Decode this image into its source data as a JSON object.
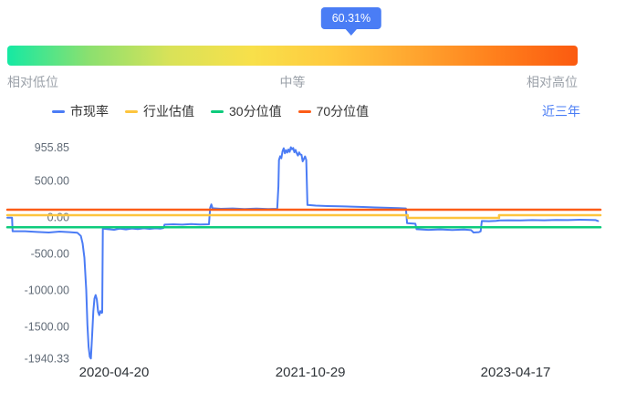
{
  "indicator": {
    "tooltip_value": "60.31%",
    "value_percent": 60.31,
    "low_label": "相对低位",
    "mid_label": "中等",
    "high_label": "相对高位",
    "gradient": [
      "#15E9A3",
      "#8BE06F",
      "#D9E258",
      "#F8E04A",
      "#FFC93E",
      "#FFA52F",
      "#FF7F1C",
      "#FB5A10"
    ]
  },
  "legend": {
    "items": [
      {
        "label": "市现率",
        "color": "#4B7CF5"
      },
      {
        "label": "行业估值",
        "color": "#FDC53E"
      },
      {
        "label": "30分位值",
        "color": "#0ECB7C"
      },
      {
        "label": "70分位值",
        "color": "#FC5C17"
      }
    ]
  },
  "range_link_label": "近三年",
  "chart_data": {
    "type": "line",
    "title": "",
    "xlabel": "",
    "ylabel": "",
    "x_unit": "fraction of 3-year window (dates)",
    "grid": false,
    "legend_position": "top-left",
    "ylim": [
      -1950,
      975
    ],
    "y_ticks": [
      {
        "value": 955.85,
        "label": "955.85"
      },
      {
        "value": 500,
        "label": "500.00"
      },
      {
        "value": 0,
        "label": "0.00"
      },
      {
        "value": -500,
        "label": "-500.00"
      },
      {
        "value": -1000,
        "label": "-1000.00"
      },
      {
        "value": -1500,
        "label": "-1500.00"
      },
      {
        "value": -1940.33,
        "label": "-1940.33"
      }
    ],
    "x_ticks": [
      {
        "pos": 0.18,
        "label": "2020-04-20"
      },
      {
        "pos": 0.511,
        "label": "2021-10-29"
      },
      {
        "pos": 0.857,
        "label": "2023-04-17"
      }
    ],
    "series": [
      {
        "name": "市现率",
        "color": "#4B7CF5",
        "width": 2,
        "points": [
          [
            0.0,
            -10
          ],
          [
            0.008,
            -10
          ],
          [
            0.009,
            -195
          ],
          [
            0.03,
            -195
          ],
          [
            0.05,
            -205
          ],
          [
            0.07,
            -212
          ],
          [
            0.088,
            -200
          ],
          [
            0.105,
            -207
          ],
          [
            0.118,
            -215
          ],
          [
            0.124,
            -260
          ],
          [
            0.127,
            -360
          ],
          [
            0.13,
            -560
          ],
          [
            0.133,
            -1000
          ],
          [
            0.135,
            -1480
          ],
          [
            0.137,
            -1780
          ],
          [
            0.139,
            -1915
          ],
          [
            0.141,
            -1940.33
          ],
          [
            0.143,
            -1640
          ],
          [
            0.145,
            -1290
          ],
          [
            0.147,
            -1120
          ],
          [
            0.149,
            -1070
          ],
          [
            0.151,
            -1130
          ],
          [
            0.153,
            -1300
          ],
          [
            0.155,
            -1345
          ],
          [
            0.157,
            -1290
          ],
          [
            0.159,
            -1315
          ],
          [
            0.16,
            -1310
          ],
          [
            0.161,
            -160
          ],
          [
            0.17,
            -168
          ],
          [
            0.18,
            -175
          ],
          [
            0.19,
            -160
          ],
          [
            0.2,
            -170
          ],
          [
            0.21,
            -158
          ],
          [
            0.22,
            -166
          ],
          [
            0.23,
            -155
          ],
          [
            0.24,
            -163
          ],
          [
            0.25,
            -155
          ],
          [
            0.258,
            -160
          ],
          [
            0.263,
            -152
          ],
          [
            0.265,
            -105
          ],
          [
            0.28,
            -100
          ],
          [
            0.295,
            -105
          ],
          [
            0.31,
            -97
          ],
          [
            0.325,
            -102
          ],
          [
            0.34,
            -100
          ],
          [
            0.342,
            125
          ],
          [
            0.344,
            172
          ],
          [
            0.346,
            120
          ],
          [
            0.36,
            113
          ],
          [
            0.38,
            118
          ],
          [
            0.4,
            110
          ],
          [
            0.42,
            116
          ],
          [
            0.44,
            110
          ],
          [
            0.455,
            113
          ],
          [
            0.457,
            420
          ],
          [
            0.458,
            780
          ],
          [
            0.46,
            832
          ],
          [
            0.462,
            805
          ],
          [
            0.464,
            900
          ],
          [
            0.466,
            942
          ],
          [
            0.468,
            872
          ],
          [
            0.47,
            916
          ],
          [
            0.472,
            884
          ],
          [
            0.474,
            926
          ],
          [
            0.476,
            893
          ],
          [
            0.478,
            955.85
          ],
          [
            0.48,
            928
          ],
          [
            0.482,
            946
          ],
          [
            0.484,
            888
          ],
          [
            0.486,
            920
          ],
          [
            0.488,
            872
          ],
          [
            0.49,
            843
          ],
          [
            0.492,
            886
          ],
          [
            0.494,
            858
          ],
          [
            0.496,
            852
          ],
          [
            0.498,
            762
          ],
          [
            0.5,
            796
          ],
          [
            0.502,
            830
          ],
          [
            0.504,
            782
          ],
          [
            0.506,
            165
          ],
          [
            0.52,
            156
          ],
          [
            0.54,
            150
          ],
          [
            0.56,
            146
          ],
          [
            0.58,
            142
          ],
          [
            0.6,
            137
          ],
          [
            0.62,
            131
          ],
          [
            0.64,
            126
          ],
          [
            0.66,
            121
          ],
          [
            0.672,
            117
          ],
          [
            0.674,
            -85
          ],
          [
            0.688,
            -92
          ],
          [
            0.69,
            -168
          ],
          [
            0.71,
            -176
          ],
          [
            0.73,
            -170
          ],
          [
            0.75,
            -178
          ],
          [
            0.77,
            -172
          ],
          [
            0.782,
            -180
          ],
          [
            0.786,
            -212
          ],
          [
            0.795,
            -207
          ],
          [
            0.798,
            -196
          ],
          [
            0.8,
            -55
          ],
          [
            0.812,
            -58
          ],
          [
            0.824,
            -53
          ],
          [
            0.83,
            -48
          ],
          [
            0.845,
            -45
          ],
          [
            0.865,
            -48
          ],
          [
            0.885,
            -42
          ],
          [
            0.905,
            -45
          ],
          [
            0.925,
            -40
          ],
          [
            0.945,
            -43
          ],
          [
            0.965,
            -38
          ],
          [
            0.985,
            -41
          ],
          [
            0.992,
            -42
          ],
          [
            0.996,
            -55
          ]
        ]
      },
      {
        "name": "行业估值",
        "color": "#FDC53E",
        "width": 2.5,
        "points": [
          [
            0,
            25
          ],
          [
            0.675,
            25
          ],
          [
            0.675,
            -12
          ],
          [
            0.829,
            -12
          ],
          [
            0.829,
            25
          ],
          [
            1,
            25
          ]
        ]
      },
      {
        "name": "30分位值",
        "color": "#0ECB7C",
        "width": 2.5,
        "points": [
          [
            0,
            -140
          ],
          [
            1,
            -140
          ]
        ]
      },
      {
        "name": "70分位值",
        "color": "#FC5C17",
        "width": 2.5,
        "points": [
          [
            0,
            100
          ],
          [
            1,
            100
          ]
        ]
      }
    ]
  }
}
